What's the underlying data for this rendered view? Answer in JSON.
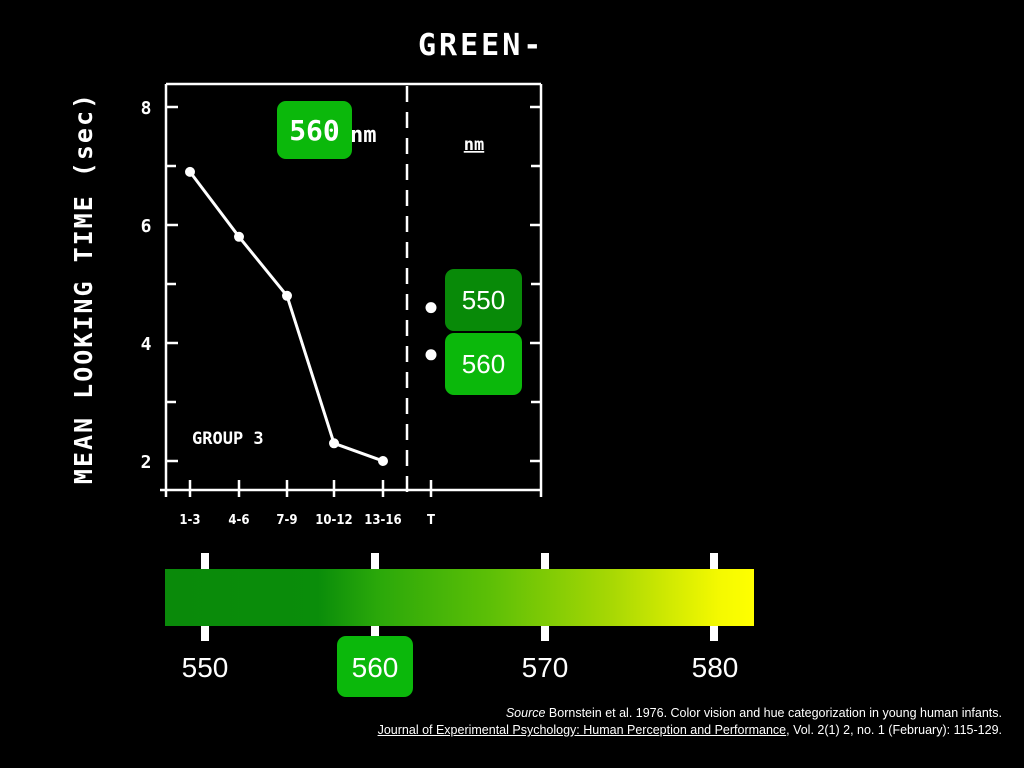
{
  "figure_title": "GREEN-",
  "chart_data": {
    "type": "line",
    "ylabel": "MEAN LOOKING TIME (sec)",
    "xlabel": "",
    "ylim": [
      1.5,
      8.4
    ],
    "yticks": [
      2,
      4,
      6,
      8
    ],
    "categories": [
      "1-3",
      "4-6",
      "7-9",
      "10-12",
      "13-16"
    ],
    "values": [
      6.9,
      5.8,
      4.8,
      2.3,
      2.0
    ],
    "group_label": "GROUP 3",
    "test_panel": {
      "header": "nm",
      "category": "T",
      "points": [
        {
          "label": "550",
          "value": 4.6
        },
        {
          "label": "560",
          "value": 3.8
        }
      ]
    }
  },
  "badges": {
    "habituation_value": "560",
    "habituation_unit": "nm"
  },
  "spectrum_scale": {
    "labels": [
      "550",
      "560",
      "570",
      "580"
    ],
    "highlighted": "560",
    "gradient_colors": [
      "#0a8a0a",
      "#2aa80a",
      "#a8d804",
      "#ffff00"
    ]
  },
  "source": {
    "label": "Source",
    "text": " Bornstein et al. 1976. Color vision and hue categorization in young human infants.",
    "journal": "Journal of Experimental Psychology: Human Perception and Performance",
    "details": ", Vol. 2(1) 2, no. 1 (February): 115-129."
  },
  "colors": {
    "badge_green": "#0bb80b",
    "badge_dark_green": "#088a08",
    "background": "#000000"
  }
}
